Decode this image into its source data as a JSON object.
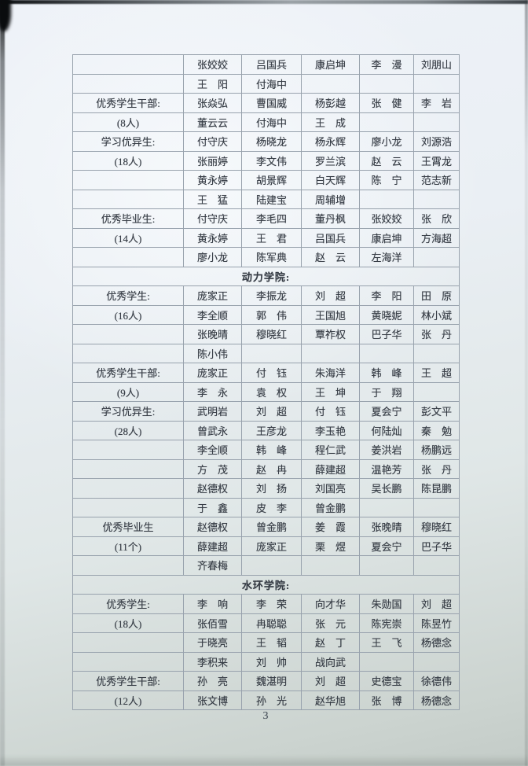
{
  "colors": {
    "paper": "#e9eef3",
    "paper_bottom": "#c9d1cd",
    "table_line": "#98a2ad",
    "ink": "#373d46",
    "scan_edge": "#0e1114"
  },
  "page": {
    "number": "3"
  },
  "table": {
    "column_count": 6,
    "rows": [
      {
        "label": "",
        "names": [
          "张姣姣",
          "吕国兵",
          "康启坤",
          "李　漫",
          "刘朋山"
        ]
      },
      {
        "label": "",
        "names": [
          "王　阳",
          "付海中",
          "",
          "",
          ""
        ]
      },
      {
        "label": "优秀学生干部:",
        "names": [
          "张焱弘",
          "曹国威",
          "杨彭越",
          "张　健",
          "李　岩"
        ]
      },
      {
        "label": "(8人)",
        "names": [
          "董云云",
          "付海中",
          "王　成",
          "",
          ""
        ]
      },
      {
        "label": "学习优异生:",
        "names": [
          "付守庆",
          "杨晓龙",
          "杨永辉",
          "廖小龙",
          "刘源浩"
        ]
      },
      {
        "label": "(18人)",
        "names": [
          "张丽婷",
          "李文伟",
          "罗兰滨",
          "赵　云",
          "王霄龙"
        ]
      },
      {
        "label": "",
        "names": [
          "黄永婷",
          "胡景辉",
          "白天辉",
          "陈　宁",
          "范志新"
        ]
      },
      {
        "label": "",
        "names": [
          "王　猛",
          "陆建宝",
          "周辅增",
          "",
          ""
        ]
      },
      {
        "label": "优秀毕业生:",
        "names": [
          "付守庆",
          "李毛四",
          "董丹枫",
          "张姣姣",
          "张　欣"
        ]
      },
      {
        "label": "(14人)",
        "names": [
          "黄永婷",
          "王　君",
          "吕国兵",
          "康启坤",
          "方海超"
        ]
      },
      {
        "label": "",
        "names": [
          "廖小龙",
          "陈军典",
          "赵　云",
          "左海洋",
          ""
        ]
      },
      {
        "section": "动力学院:"
      },
      {
        "label": "优秀学生:",
        "names": [
          "庞家正",
          "李振龙",
          "刘　超",
          "李　阳",
          "田　原"
        ]
      },
      {
        "label": "(16人)",
        "names": [
          "李全顺",
          "郭　伟",
          "王国旭",
          "黄晓妮",
          "林小斌"
        ]
      },
      {
        "label": "",
        "names": [
          "张晚晴",
          "穆晓红",
          "覃祚权",
          "巴子华",
          "张　丹"
        ]
      },
      {
        "label": "",
        "names": [
          "陈小伟",
          "",
          "",
          "",
          ""
        ]
      },
      {
        "label": "优秀学生干部:",
        "names": [
          "庞家正",
          "付　钰",
          "朱海洋",
          "韩　峰",
          "王　超"
        ]
      },
      {
        "label": "(9人)",
        "names": [
          "李　永",
          "袁　权",
          "王　坤",
          "于　翔",
          ""
        ]
      },
      {
        "label": "学习优异生:",
        "names": [
          "武明岩",
          "刘　超",
          "付　钰",
          "夏会宁",
          "彭文平"
        ]
      },
      {
        "label": "(28人)",
        "names": [
          "曾武永",
          "王彦龙",
          "李玉艳",
          "何陆灿",
          "秦　勉"
        ]
      },
      {
        "label": "",
        "names": [
          "李全顺",
          "韩　峰",
          "程仁武",
          "姜洪岩",
          "杨鹏远"
        ]
      },
      {
        "label": "",
        "names": [
          "方　茂",
          "赵　冉",
          "薛建超",
          "温艳芳",
          "张　丹"
        ]
      },
      {
        "label": "",
        "names": [
          "赵德权",
          "刘　扬",
          "刘国亮",
          "吴长鹏",
          "陈昆鹏"
        ]
      },
      {
        "label": "",
        "names": [
          "于　鑫",
          "皮　李",
          "曾金鹏",
          "",
          ""
        ]
      },
      {
        "label": "优秀毕业生",
        "names": [
          "赵德权",
          "曾金鹏",
          "姜　霞",
          "张晚晴",
          "穆晓红"
        ]
      },
      {
        "label": "(11个)",
        "names": [
          "薛建超",
          "庞家正",
          "栗　煜",
          "夏会宁",
          "巴子华"
        ]
      },
      {
        "label": "",
        "names": [
          "齐春梅",
          "",
          "",
          "",
          ""
        ]
      },
      {
        "section": "水环学院:"
      },
      {
        "label": "优秀学生:",
        "names": [
          "李　响",
          "李　荣",
          "向才华",
          "朱勋国",
          "刘　超"
        ]
      },
      {
        "label": "(18人)",
        "names": [
          "张佰雪",
          "冉聪聪",
          "张　元",
          "陈宪崇",
          "陈昱竹"
        ]
      },
      {
        "label": "",
        "names": [
          "于晓亮",
          "王　韬",
          "赵　丁",
          "王　飞",
          "杨德念"
        ]
      },
      {
        "label": "",
        "names": [
          "李积来",
          "刘　帅",
          "战向武",
          "",
          ""
        ]
      },
      {
        "label": "优秀学生干部:",
        "names": [
          "孙　亮",
          "魏湛明",
          "刘　超",
          "史德宝",
          "徐德伟"
        ]
      },
      {
        "label": "(12人)",
        "names": [
          "张文博",
          "孙　光",
          "赵华旭",
          "张　博",
          "杨德念"
        ]
      }
    ]
  }
}
